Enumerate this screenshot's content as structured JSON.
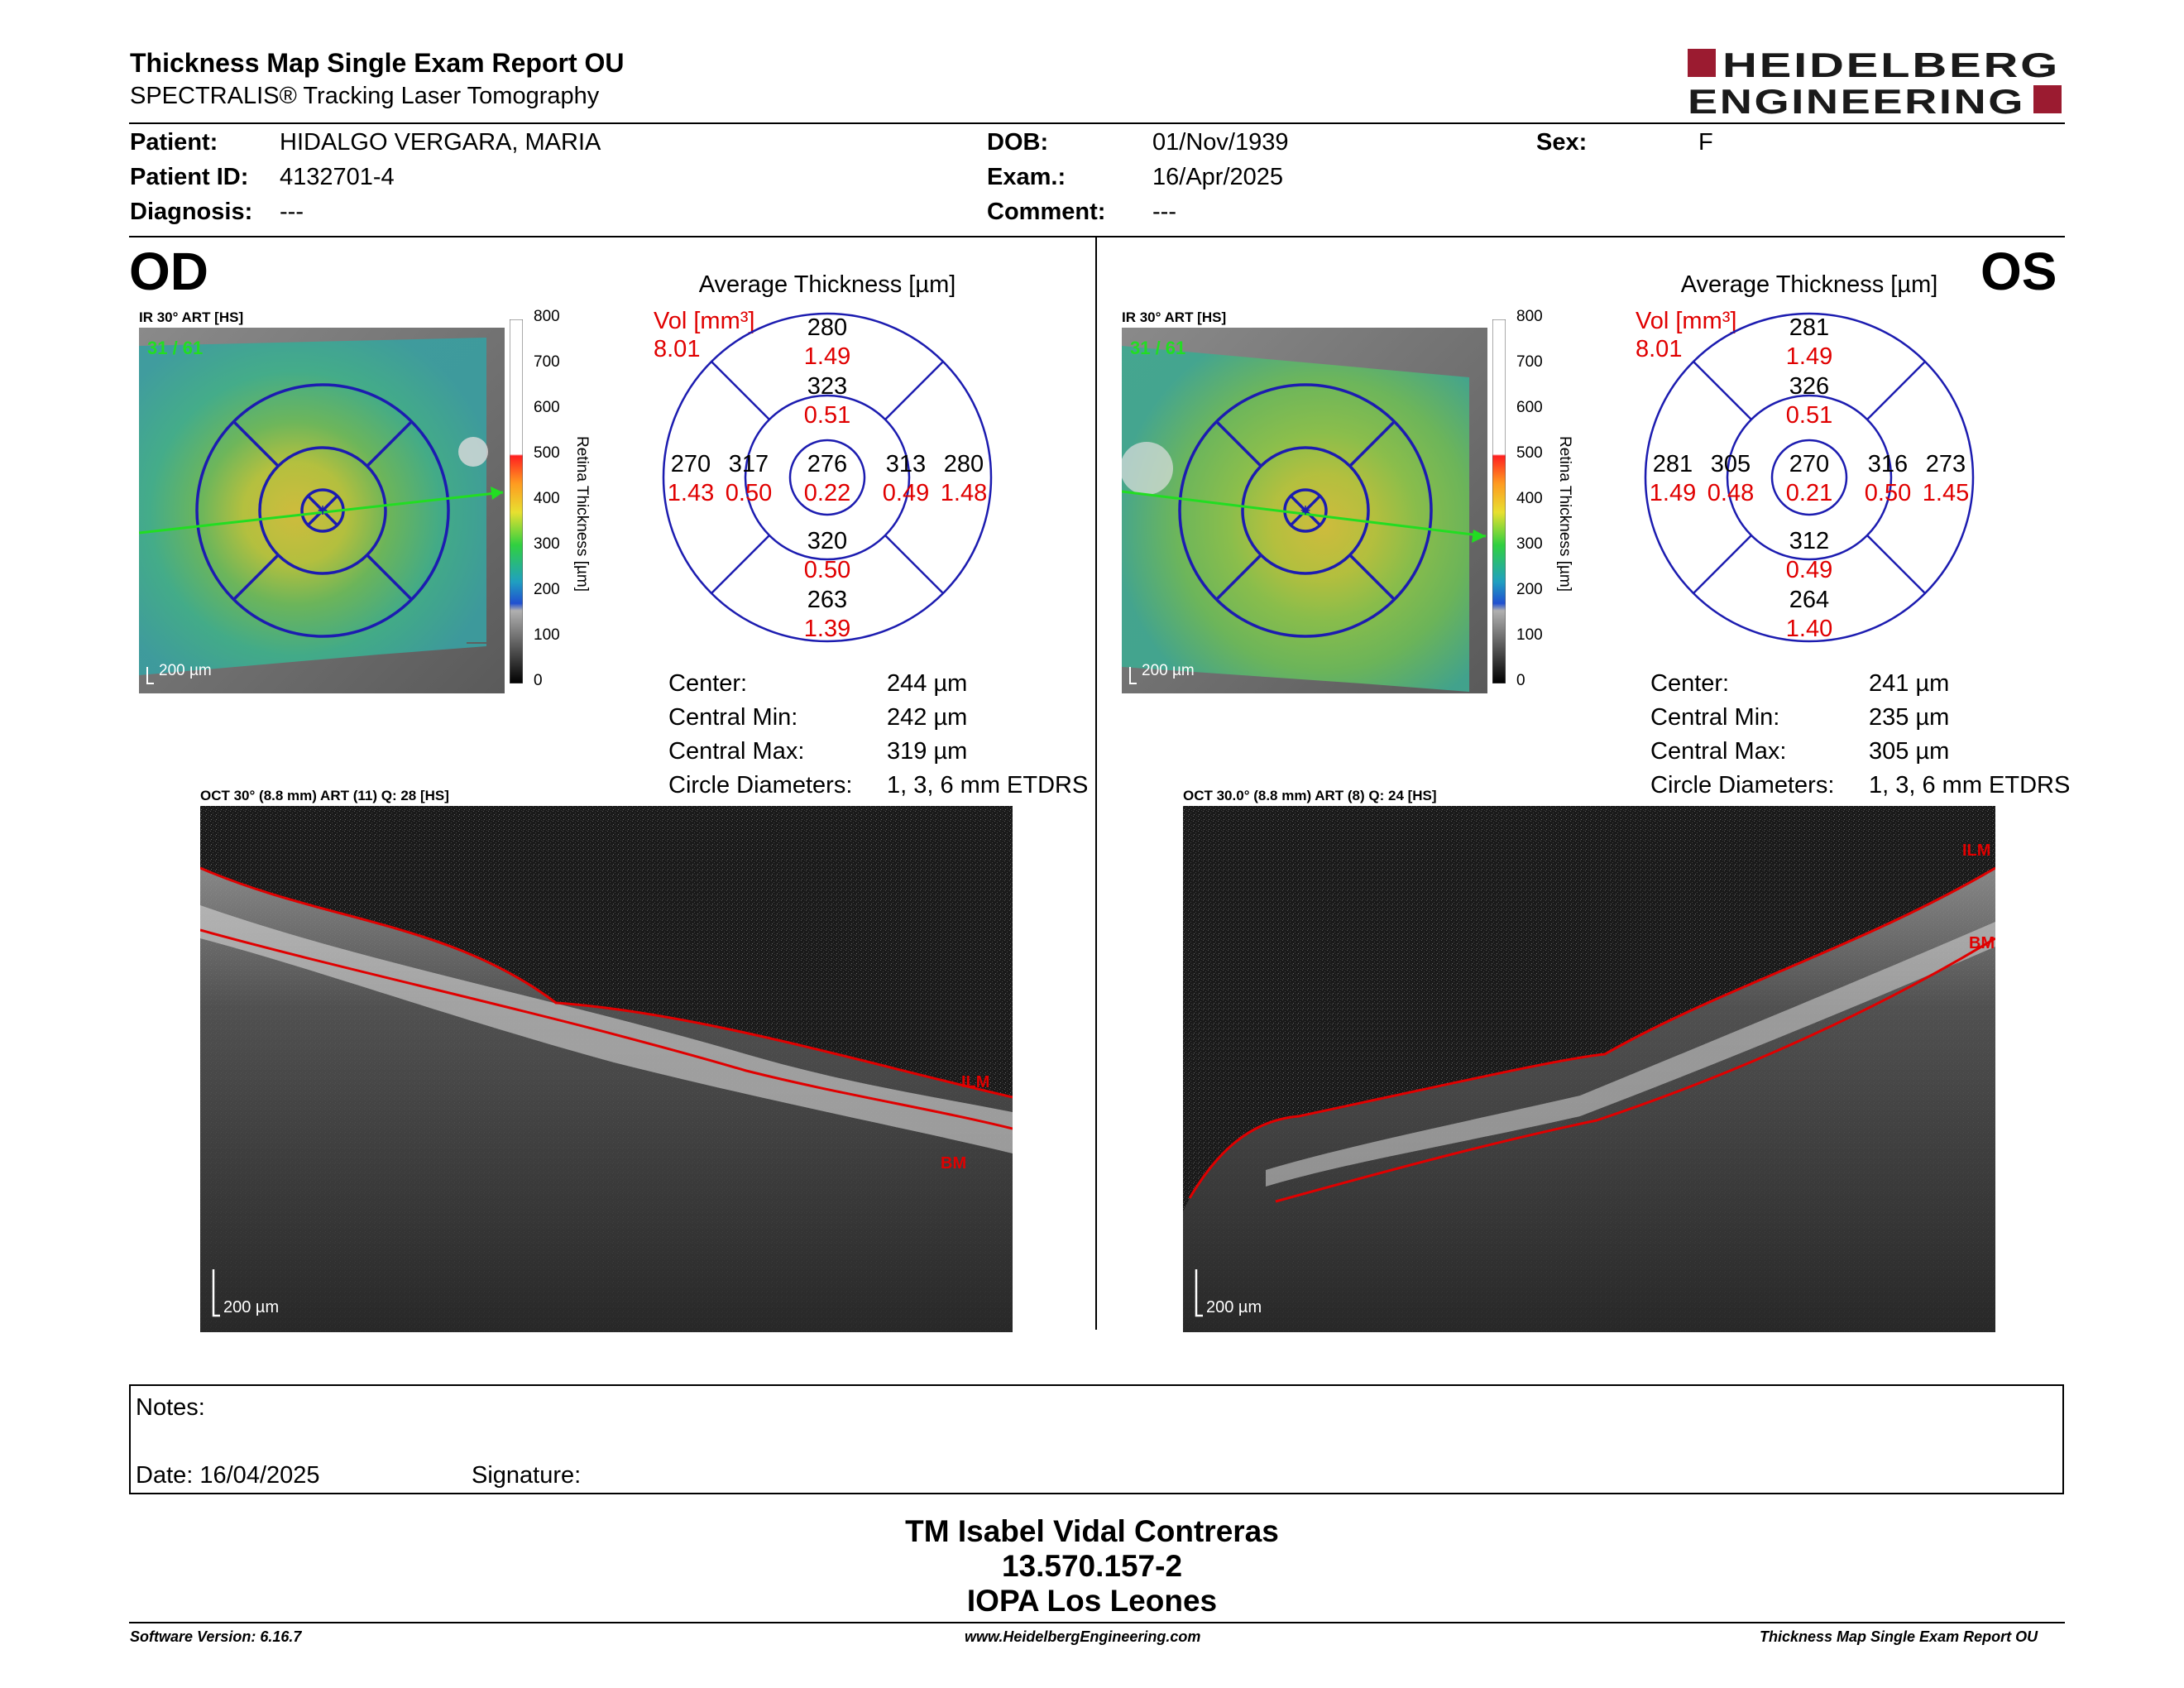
{
  "header": {
    "title": "Thickness Map Single Exam Report OU",
    "subtitle": "SPECTRALIS® Tracking Laser Tomography",
    "logo_line1": "HEIDELBERG",
    "logo_line2": "ENGINEERING"
  },
  "patient": {
    "patient_label": "Patient:",
    "patient_name": "HIDALGO VERGARA, MARIA",
    "id_label": "Patient ID:",
    "id_value": "4132701-4",
    "diagnosis_label": "Diagnosis:",
    "diagnosis_value": "---",
    "dob_label": "DOB:",
    "dob_value": "01/Nov/1939",
    "exam_label": "Exam.:",
    "exam_value": "16/Apr/2025",
    "comment_label": "Comment:",
    "comment_value": "---",
    "sex_label": "Sex:",
    "sex_value": "F"
  },
  "od": {
    "eye": "OD",
    "fundus_label": "IR 30° ART [HS]",
    "frame_counter": "31 / 61",
    "scale_label": "200 µm",
    "colorbar_ticks": [
      "800",
      "700",
      "600",
      "500",
      "400",
      "300",
      "200",
      "100",
      "0"
    ],
    "colorbar_title": "Retina Thickness [µm]",
    "avg_title": "Average Thickness [µm]",
    "vol_label": "Vol [mm³]",
    "vol_total": "8.01",
    "grid": {
      "center_t": "276",
      "center_v": "0.22",
      "inner_sup_t": "323",
      "inner_sup_v": "0.51",
      "inner_inf_t": "320",
      "inner_inf_v": "0.50",
      "inner_left_t": "317",
      "inner_left_v": "0.50",
      "inner_right_t": "313",
      "inner_right_v": "0.49",
      "outer_sup_t": "280",
      "outer_sup_v": "1.49",
      "outer_inf_t": "263",
      "outer_inf_v": "1.39",
      "outer_left_t": "270",
      "outer_left_v": "1.43",
      "outer_right_t": "280",
      "outer_right_v": "1.48"
    },
    "stats": {
      "center_label": "Center:",
      "center_value": "244 µm",
      "min_label": "Central Min:",
      "min_value": "242 µm",
      "max_label": "Central Max:",
      "max_value": "319 µm",
      "diam_label": "Circle Diameters:",
      "diam_value": "1, 3, 6 mm ETDRS"
    },
    "oct_label": "OCT 30° (8.8 mm) ART (11) Q: 28 [HS]",
    "oct_scale": "200 µm",
    "ilm": "ILM",
    "bm": "BM"
  },
  "os": {
    "eye": "OS",
    "fundus_label": "IR 30° ART [HS]",
    "frame_counter": "31 / 61",
    "scale_label": "200 µm",
    "colorbar_ticks": [
      "800",
      "700",
      "600",
      "500",
      "400",
      "300",
      "200",
      "100",
      "0"
    ],
    "colorbar_title": "Retina Thickness [µm]",
    "avg_title": "Average Thickness [µm]",
    "vol_label": "Vol [mm³]",
    "vol_total": "8.01",
    "grid": {
      "center_t": "270",
      "center_v": "0.21",
      "inner_sup_t": "326",
      "inner_sup_v": "0.51",
      "inner_inf_t": "312",
      "inner_inf_v": "0.49",
      "inner_left_t": "305",
      "inner_left_v": "0.48",
      "inner_right_t": "316",
      "inner_right_v": "0.50",
      "outer_sup_t": "281",
      "outer_sup_v": "1.49",
      "outer_inf_t": "264",
      "outer_inf_v": "1.40",
      "outer_left_t": "281",
      "outer_left_v": "1.49",
      "outer_right_t": "273",
      "outer_right_v": "1.45"
    },
    "stats": {
      "center_label": "Center:",
      "center_value": "241 µm",
      "min_label": "Central Min:",
      "min_value": "235 µm",
      "max_label": "Central Max:",
      "max_value": "305 µm",
      "diam_label": "Circle Diameters:",
      "diam_value": "1, 3, 6 mm ETDRS"
    },
    "oct_label": "OCT 30.0° (8.8 mm) ART (8) Q: 24 [HS]",
    "oct_scale": "200 µm",
    "ilm": "ILM",
    "bm": "BM"
  },
  "notes": {
    "notes_label": "Notes:",
    "date_label": "Date: 16/04/2025",
    "signature_label": "Signature:"
  },
  "footer": {
    "name": "TM Isabel Vidal Contreras",
    "rut": "13.570.157-2",
    "clinic": "IOPA Los Leones",
    "software": "Software Version: 6.16.7",
    "website": "www.HeidelbergEngineering.com",
    "report": "Thickness Map Single Exam Report OU"
  },
  "colors": {
    "grid_blue": "#1c1cb0",
    "volume_red": "#e00000",
    "logo_red": "#9b1b30",
    "ilm_line": "#e00000",
    "frame_green": "#22dd22"
  }
}
